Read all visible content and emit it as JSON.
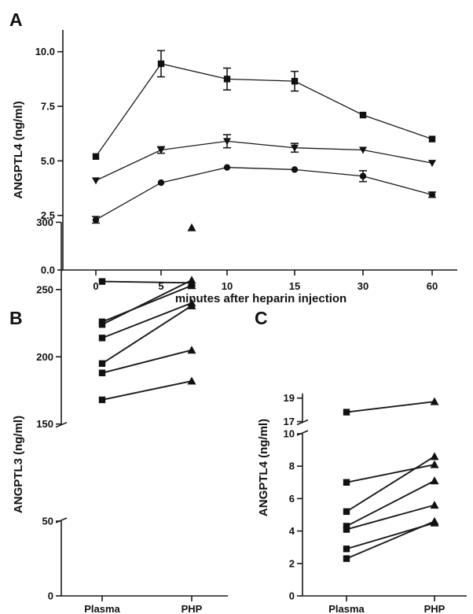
{
  "chart_data": [
    {
      "panel_label": "A",
      "type": "line",
      "xlabel": "minutes after heparin injection",
      "ylabel": "ANGPTL4 (ng/ml)",
      "categories": [
        "0",
        "5",
        "10",
        "15",
        "30",
        "60"
      ],
      "yticks": [
        "0.0",
        "2.5",
        "5.0",
        "7.5",
        "10.0"
      ],
      "ylim": [
        0,
        11
      ],
      "grid": false,
      "series": [
        {
          "marker": "square",
          "values": [
            5.2,
            9.45,
            8.75,
            8.65,
            7.1,
            6.0
          ],
          "err": [
            0,
            0.6,
            0.5,
            0.45,
            0,
            0
          ]
        },
        {
          "marker": "triangle-down",
          "values": [
            4.1,
            5.5,
            5.9,
            5.6,
            5.5,
            4.9
          ],
          "err": [
            0,
            0.15,
            0.3,
            0.2,
            0,
            0
          ]
        },
        {
          "marker": "circle",
          "values": [
            2.3,
            4.0,
            4.7,
            4.6,
            4.3,
            3.45
          ],
          "err": [
            0.15,
            0,
            0,
            0,
            0.25,
            0.12
          ]
        }
      ]
    },
    {
      "panel_label": "B",
      "type": "scatter",
      "ylabel": "ANGPTL3 (ng/ml)",
      "categories": [
        "Plasma",
        "PHP"
      ],
      "yticks_upper": [
        "150",
        "200",
        "250",
        "300"
      ],
      "yticks_lower": [
        "0",
        "50"
      ],
      "pairs": [
        [
          256,
          255
        ],
        [
          226,
          253
        ],
        [
          224,
          257
        ],
        [
          214,
          240
        ],
        [
          195,
          238
        ],
        [
          188,
          205
        ],
        [
          168,
          182
        ]
      ],
      "top_point_php": 296
    },
    {
      "panel_label": "C",
      "type": "scatter",
      "ylabel": "ANGPTL4 (ng/ml)",
      "categories": [
        "Plasma",
        "PHP"
      ],
      "yticks_upper": [
        "17",
        "19"
      ],
      "yticks_lower": [
        "0",
        "2",
        "4",
        "6",
        "8",
        "10"
      ],
      "pairs_upper": [
        [
          17.8,
          18.7
        ]
      ],
      "pairs": [
        [
          7.0,
          8.1
        ],
        [
          5.2,
          8.6
        ],
        [
          4.3,
          7.1
        ],
        [
          4.1,
          5.6
        ],
        [
          2.9,
          4.5
        ],
        [
          2.3,
          4.6
        ]
      ]
    }
  ]
}
